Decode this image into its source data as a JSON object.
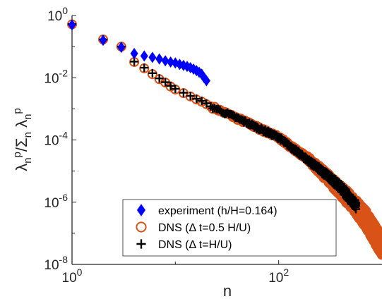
{
  "chart_data": {
    "type": "scatter",
    "xscale": "log",
    "yscale": "log",
    "xlim": [
      1,
      1000
    ],
    "ylim": [
      1e-08,
      1
    ],
    "xlabel": "n",
    "ylabel": "λₙᵖ/Σₙ λₙᵖ",
    "grid": false,
    "legend_position": "bottom-center",
    "x_ticks": [
      {
        "value": 1,
        "base": "10",
        "exp": "0"
      },
      {
        "value": 100,
        "base": "10",
        "exp": "2"
      }
    ],
    "y_ticks": [
      {
        "value": 1,
        "base": "10",
        "exp": "0"
      },
      {
        "value": 0.01,
        "base": "10",
        "exp": "-2"
      },
      {
        "value": 0.0001,
        "base": "10",
        "exp": "-4"
      },
      {
        "value": 1e-06,
        "base": "10",
        "exp": "-6"
      },
      {
        "value": 1e-08,
        "base": "10",
        "exp": "-8"
      }
    ],
    "series": [
      {
        "name": "DNS (Δ t=0.5 H/U)",
        "marker": "circle",
        "color": "#d95319",
        "points": [
          [
            1,
            0.52
          ],
          [
            2,
            0.17
          ],
          [
            3,
            0.1
          ],
          [
            4,
            0.032
          ],
          [
            5,
            0.02
          ],
          [
            6,
            0.013
          ],
          [
            7,
            0.009
          ],
          [
            8,
            0.007
          ],
          [
            9,
            0.0052
          ],
          [
            10,
            0.0042
          ],
          [
            12,
            0.0032
          ],
          [
            14,
            0.0025
          ],
          [
            16,
            0.002
          ],
          [
            18,
            0.0017
          ],
          [
            20,
            0.0014
          ],
          [
            22,
            0.0012
          ]
        ],
        "tail": {
          "from": 22,
          "to": 1000,
          "knots": [
            [
              22,
              0.0012
            ],
            [
              50,
              0.00035
            ],
            [
              100,
              0.00012
            ],
            [
              200,
              2.2e-05
            ],
            [
              300,
              6e-06
            ],
            [
              500,
              1.1e-06
            ],
            [
              700,
              2.8e-07
            ],
            [
              1000,
              4e-08
            ]
          ],
          "scatter": 0.35
        }
      },
      {
        "name": "DNS (Δ t=H/U)",
        "marker": "plus",
        "color": "#000000",
        "points": [
          [
            1,
            0.53
          ],
          [
            2,
            0.17
          ],
          [
            3,
            0.1
          ],
          [
            4,
            0.033
          ],
          [
            5,
            0.021
          ],
          [
            6,
            0.014
          ],
          [
            7,
            0.0095
          ],
          [
            8,
            0.0072
          ],
          [
            9,
            0.0055
          ],
          [
            10,
            0.0044
          ],
          [
            12,
            0.0033
          ],
          [
            14,
            0.0026
          ],
          [
            16,
            0.0021
          ],
          [
            18,
            0.0018
          ],
          [
            20,
            0.0015
          ],
          [
            22,
            0.0012
          ]
        ],
        "tail": {
          "from": 22,
          "to": 560,
          "knots": [
            [
              22,
              0.0012
            ],
            [
              50,
              0.00035
            ],
            [
              100,
              0.00012
            ],
            [
              200,
              2e-05
            ],
            [
              300,
              7e-06
            ],
            [
              400,
              3e-06
            ],
            [
              500,
              1.2e-06
            ],
            [
              560,
              8e-07
            ]
          ],
          "scatter": 0.15
        }
      },
      {
        "name": "experiment (h/H=0.164)",
        "marker": "diamond",
        "color": "#0000ff",
        "points": [
          [
            1,
            0.5
          ],
          [
            2,
            0.16
          ],
          [
            3,
            0.095
          ],
          [
            4,
            0.06
          ],
          [
            5,
            0.05
          ],
          [
            6,
            0.045
          ],
          [
            7,
            0.04
          ],
          [
            8,
            0.035
          ],
          [
            9,
            0.032
          ],
          [
            10,
            0.03
          ],
          [
            11,
            0.027
          ],
          [
            12,
            0.025
          ],
          [
            13,
            0.023
          ],
          [
            14,
            0.021
          ],
          [
            15,
            0.019
          ],
          [
            16,
            0.017
          ],
          [
            17,
            0.015
          ],
          [
            18,
            0.013
          ],
          [
            19,
            0.01
          ],
          [
            20,
            0.008
          ]
        ]
      }
    ]
  }
}
